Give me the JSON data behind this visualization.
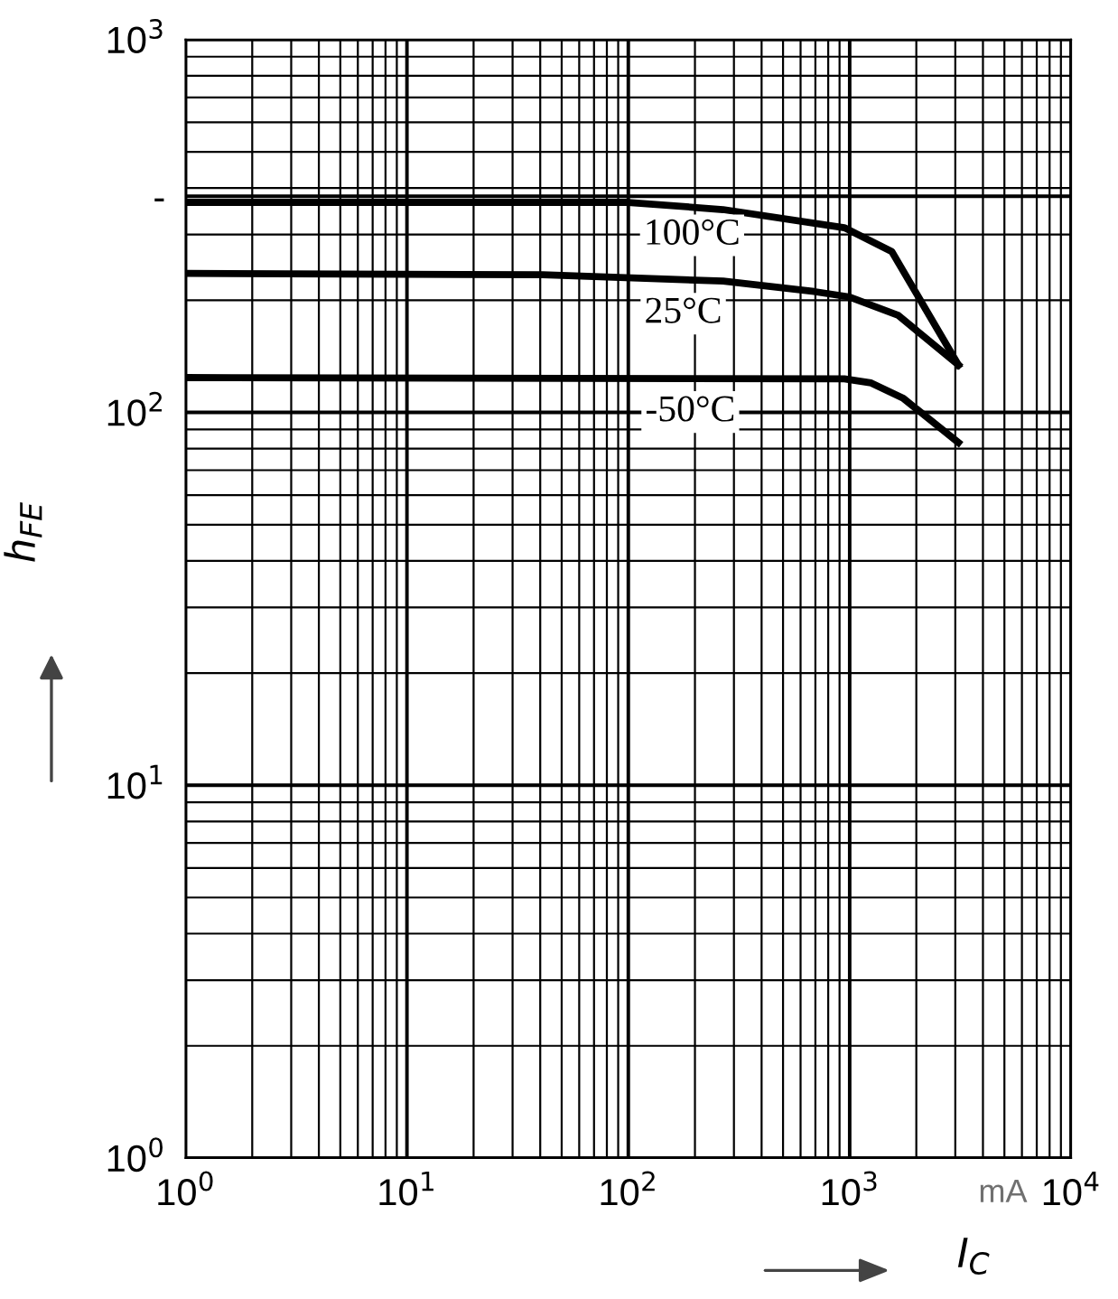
{
  "chart_data": {
    "type": "line",
    "xlabel": "I$_{C}$",
    "ylabel": "h$_{FE}$",
    "log": "xy",
    "grid": true,
    "legend": false,
    "marker": "none",
    "line_style": "solid",
    "xlim": [
      1,
      10000
    ],
    "ylim": [
      1,
      1000
    ],
    "xticks": [
      {
        "value": 1,
        "label": "10$^{0}$"
      },
      {
        "value": 10,
        "label": "10$^{1}$"
      },
      {
        "value": 100,
        "label": "10$^{2}$"
      },
      {
        "value": 1000,
        "label": "10$^{3}$"
      },
      {
        "value": 10000,
        "label": "10$^{4}$"
      }
    ],
    "yticks": [
      {
        "value": 1,
        "label": "10$^{0}$"
      },
      {
        "value": 10,
        "label": "10$^{1}$"
      },
      {
        "value": 100,
        "label": "10$^{2}$"
      },
      {
        "value": 380,
        "label": "-"
      },
      {
        "value": 1000,
        "label": "10$^{3}$"
      }
    ],
    "series": [
      {
        "color": "#000000",
        "x": [
          1,
          100,
          268,
          946,
          1550,
          3100
        ],
        "values": [
          366,
          366,
          350,
          313,
          270,
          134
        ]
      },
      {
        "color": "#000000",
        "x": [
          1,
          41,
          268,
          690,
          1000,
          1660,
          3100
        ],
        "values": [
          236,
          234,
          225,
          211,
          204,
          182,
          134
        ]
      },
      {
        "color": "#000000",
        "x": [
          1,
          946,
          1250,
          1750,
          3100
        ],
        "values": [
          124,
          123,
          120,
          109,
          83
        ]
      }
    ],
    "annotations": [
      "100°C",
      "25°C",
      "-50°C",
      "mA"
    ]
  }
}
